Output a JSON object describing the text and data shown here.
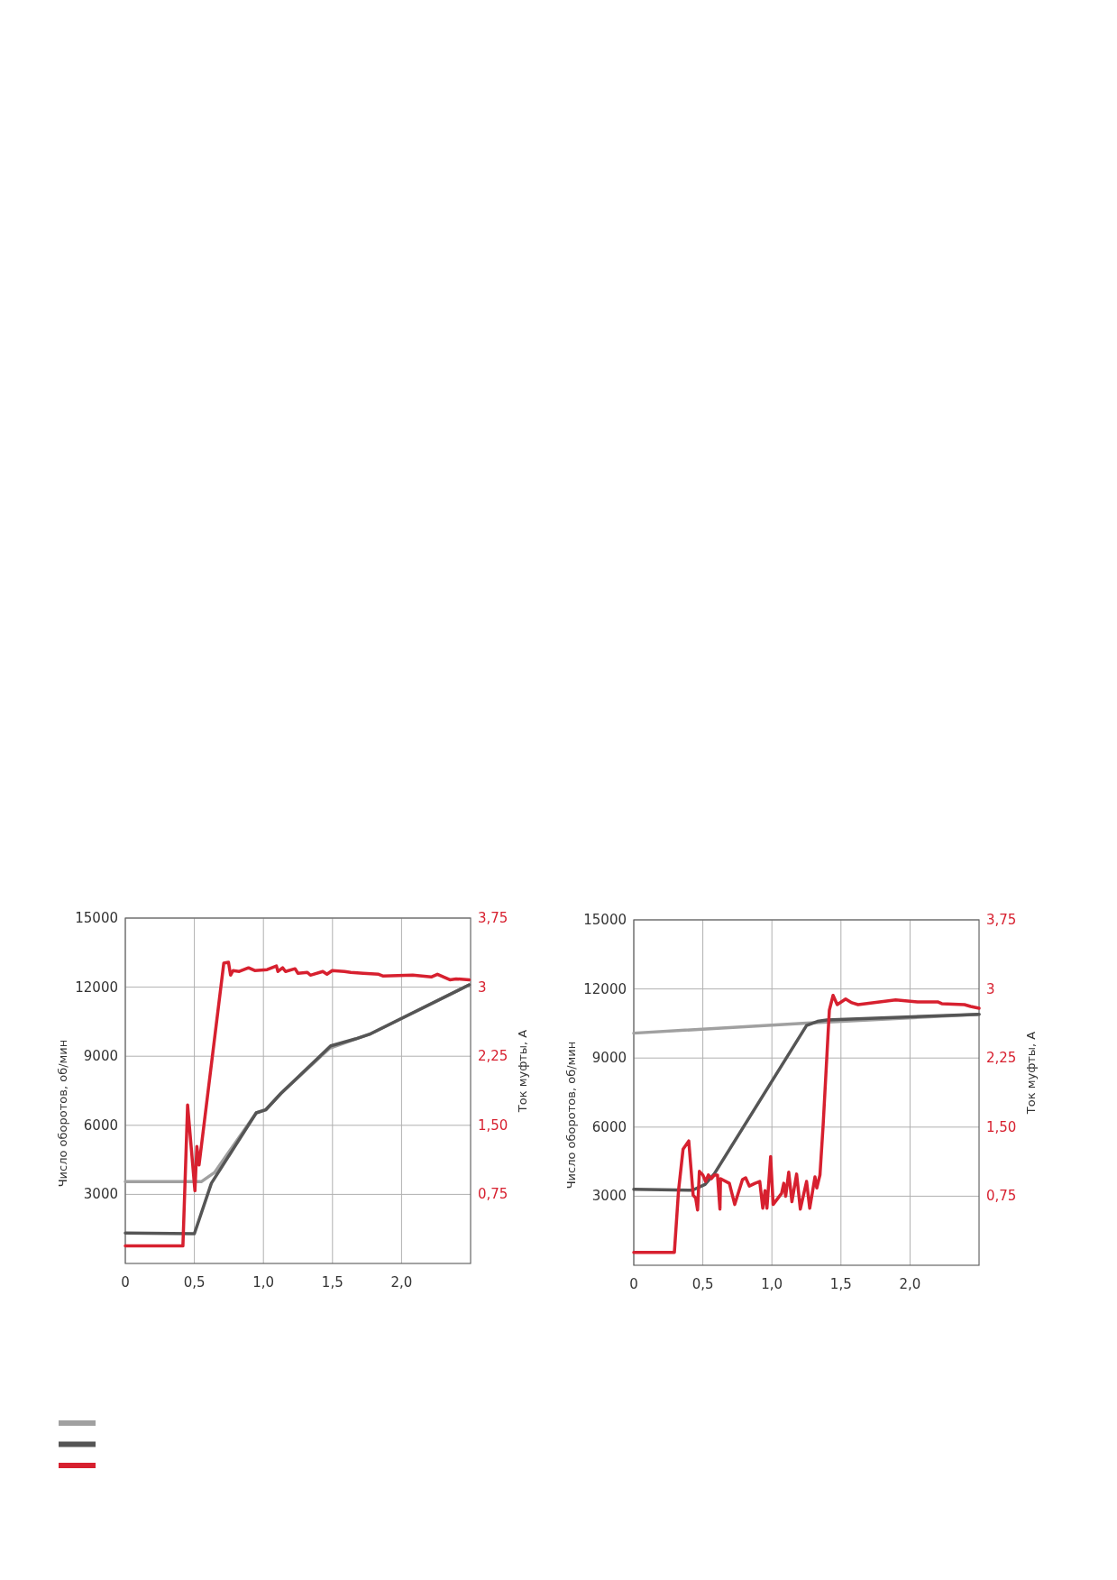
{
  "chart_data": [
    {
      "type": "line",
      "ylabel": "Число оборотов, об/мин",
      "y2label": "Ток муфты, А",
      "xlim": [
        0,
        2.5
      ],
      "ylim": [
        0,
        15000
      ],
      "y2lim": [
        0,
        3.75
      ],
      "xticks": [
        {
          "value": 0,
          "label": "0"
        },
        {
          "value": 0.5,
          "label": "0,5"
        },
        {
          "value": 1,
          "label": "1,0"
        },
        {
          "value": 1.5,
          "label": "1,5"
        },
        {
          "value": 2,
          "label": "2,0"
        }
      ],
      "yticks": [
        3000,
        6000,
        9000,
        12000,
        15000
      ],
      "y2ticks": [
        {
          "value": 0.75,
          "label": "0,75"
        },
        {
          "value": 1.5,
          "label": "1,50"
        },
        {
          "value": 2.25,
          "label": "2,25"
        },
        {
          "value": 3,
          "label": "3"
        },
        {
          "value": 3.75,
          "label": "3,75"
        }
      ],
      "grid": true,
      "line_style": "solid",
      "series": [
        {
          "color": "#a0a0a0",
          "x": [
            0,
            0.55,
            0.646,
            0.948,
            1.016,
            1.128,
            1.48,
            1.666,
            1.767,
            2.49
          ],
          "values": [
            3550,
            3550,
            3950,
            6540,
            6670,
            7390,
            9350,
            9750,
            9950,
            12100
          ]
        },
        {
          "color": "#555555",
          "x": [
            0,
            0.5,
            0.623,
            0.948,
            1.016,
            1.128,
            1.487,
            1.666,
            1.767,
            2.49
          ],
          "values": [
            1320,
            1290,
            3480,
            6540,
            6670,
            7390,
            9450,
            9750,
            9950,
            12100
          ]
        },
        {
          "color": "#d7202f",
          "axis": "y2",
          "x": [
            0,
            0.417,
            0.451,
            0.504,
            0.518,
            0.534,
            0.713,
            0.747,
            0.762,
            0.78,
            0.825,
            0.892,
            0.937,
            1.027,
            1.094,
            1.105,
            1.139,
            1.16,
            1.229,
            1.25,
            1.318,
            1.34,
            1.43,
            1.46,
            1.498,
            1.587,
            1.632,
            1.722,
            1.834,
            1.868,
            2.081,
            2.215,
            2.26,
            2.35,
            2.395,
            2.49
          ],
          "values": [
            0.19,
            0.19,
            1.72,
            0.79,
            1.27,
            1.07,
            3.26,
            3.27,
            3.13,
            3.18,
            3.17,
            3.21,
            3.18,
            3.19,
            3.23,
            3.17,
            3.21,
            3.17,
            3.2,
            3.15,
            3.16,
            3.13,
            3.17,
            3.14,
            3.18,
            3.17,
            3.16,
            3.15,
            3.14,
            3.12,
            3.13,
            3.11,
            3.14,
            3.08,
            3.09,
            3.08
          ]
        }
      ]
    },
    {
      "type": "line",
      "ylabel": "Число оборотов, об/мин",
      "y2label": "Ток муфты, А",
      "xlim": [
        0,
        2.5
      ],
      "ylim": [
        0,
        15000
      ],
      "y2lim": [
        0,
        3.75
      ],
      "xticks": [
        {
          "value": 0,
          "label": "0"
        },
        {
          "value": 0.5,
          "label": "0,5"
        },
        {
          "value": 1,
          "label": "1,0"
        },
        {
          "value": 1.5,
          "label": "1,5"
        },
        {
          "value": 2,
          "label": "2,0"
        }
      ],
      "yticks": [
        3000,
        6000,
        9000,
        12000,
        15000
      ],
      "y2ticks": [
        {
          "value": 0.75,
          "label": "0,75"
        },
        {
          "value": 1.5,
          "label": "1,50"
        },
        {
          "value": 2.25,
          "label": "2,25"
        },
        {
          "value": 3,
          "label": "3"
        },
        {
          "value": 3.75,
          "label": "3,75"
        }
      ],
      "grid": true,
      "line_style": "solid",
      "series": [
        {
          "color": "#a0a0a0",
          "x": [
            0,
            1.25,
            2.5
          ],
          "values": [
            10080,
            10520,
            10900
          ]
        },
        {
          "color": "#555555",
          "x": [
            0,
            0.425,
            0.516,
            0.584,
            1.251,
            1.33,
            1.398,
            2.5
          ],
          "values": [
            3300,
            3260,
            3510,
            3980,
            10410,
            10590,
            10650,
            10900
          ]
        },
        {
          "color": "#d7202f",
          "axis": "y2",
          "x": [
            0,
            0.294,
            0.324,
            0.357,
            0.398,
            0.43,
            0.448,
            0.462,
            0.475,
            0.5,
            0.52,
            0.54,
            0.562,
            0.584,
            0.606,
            0.624,
            0.628,
            0.692,
            0.731,
            0.787,
            0.81,
            0.837,
            0.878,
            0.912,
            0.934,
            0.95,
            0.964,
            0.991,
            1.009,
            1.07,
            1.086,
            1.1,
            1.122,
            1.145,
            1.179,
            1.206,
            1.251,
            1.274,
            1.312,
            1.325,
            1.348,
            1.371,
            1.416,
            1.443,
            1.473,
            1.534,
            1.579,
            1.624,
            1.896,
            2.054,
            2.2,
            2.23,
            2.394,
            2.439,
            2.5
          ],
          "values": [
            0.14,
            0.14,
            0.81,
            1.26,
            1.35,
            0.76,
            0.73,
            0.6,
            1.02,
            0.98,
            0.91,
            0.98,
            0.94,
            0.98,
            0.98,
            0.61,
            0.94,
            0.89,
            0.66,
            0.93,
            0.95,
            0.86,
            0.89,
            0.91,
            0.62,
            0.81,
            0.62,
            1.18,
            0.66,
            0.78,
            0.89,
            0.75,
            1.01,
            0.69,
            0.99,
            0.61,
            0.91,
            0.62,
            0.96,
            0.84,
            0.98,
            1.52,
            2.77,
            2.93,
            2.83,
            2.89,
            2.85,
            2.83,
            2.88,
            2.86,
            2.86,
            2.84,
            2.83,
            2.81,
            2.79
          ]
        }
      ]
    }
  ]
}
